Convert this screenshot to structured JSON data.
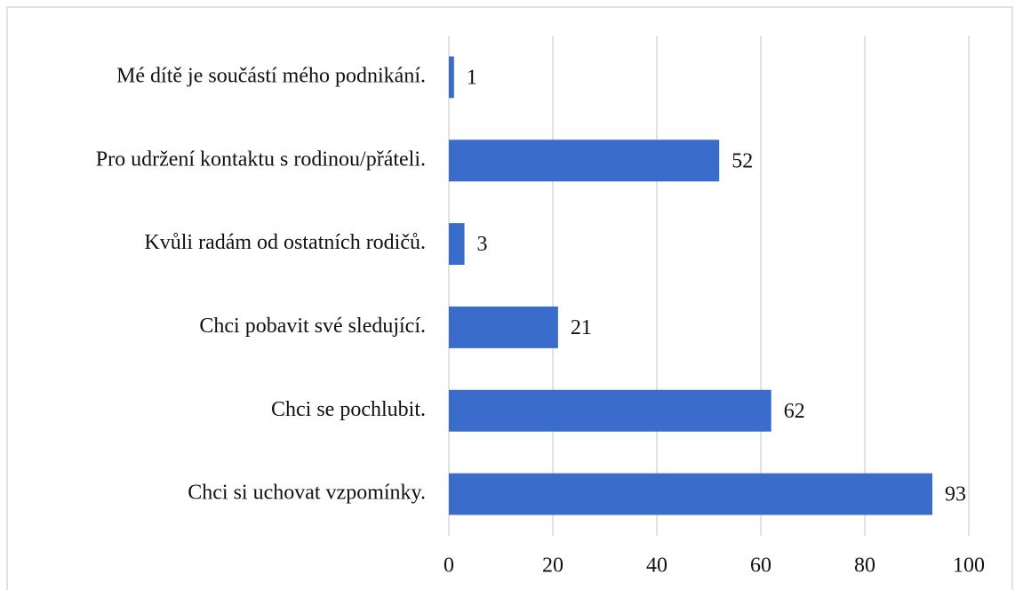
{
  "chart_data": {
    "type": "bar",
    "orientation": "horizontal",
    "categories": [
      "Mé dítě je součástí mého podnikání.",
      "Pro udržení kontaktu s rodinou/přáteli.",
      "Kvůli radám od ostatních rodičů.",
      "Chci pobavit své sledující.",
      "Chci se pochlubit.",
      "Chci si uchovat vzpomínky."
    ],
    "values": [
      1,
      52,
      3,
      21,
      62,
      93
    ],
    "color": "#3a6ccc",
    "xlim": [
      0,
      100
    ],
    "xticks": [
      0,
      20,
      40,
      60,
      80,
      100
    ],
    "grid": true
  }
}
